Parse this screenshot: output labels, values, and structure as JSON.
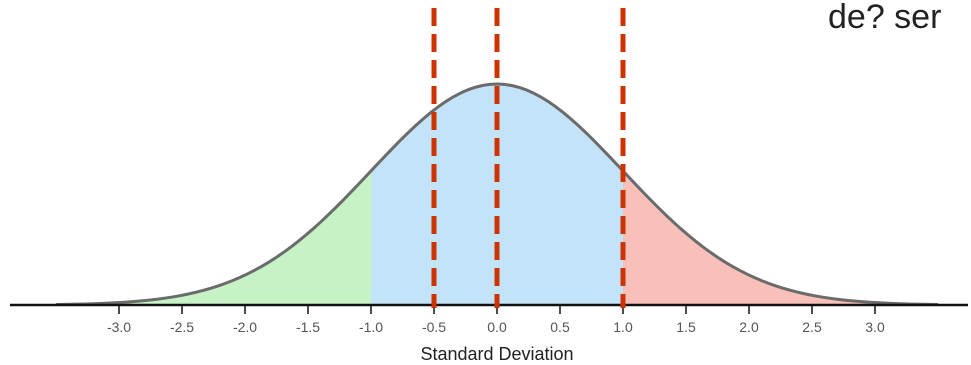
{
  "chart_data": {
    "type": "area",
    "title": "",
    "xlabel": "Standard Deviation",
    "ylabel": "",
    "xlim": [
      -3.5,
      3.5
    ],
    "x_ticks": [
      "-3.0",
      "-2.5",
      "-2.0",
      "-1.5",
      "-1.0",
      "-0.5",
      "0.0",
      "0.5",
      "1.0",
      "1.5",
      "2.0",
      "2.5",
      "3.0"
    ],
    "tick_values": [
      -3.0,
      -2.5,
      -2.0,
      -1.5,
      -1.0,
      -0.5,
      0.0,
      0.5,
      1.0,
      1.5,
      2.0,
      2.5,
      3.0
    ],
    "distribution": {
      "name": "normal",
      "mean": 0,
      "sd": 1
    },
    "regions": [
      {
        "from": -3.5,
        "to": -1.0,
        "color": "#c6f2c6"
      },
      {
        "from": -1.0,
        "to": 1.0,
        "color": "#c3e4f8"
      },
      {
        "from": 1.0,
        "to": 3.5,
        "color": "#f8c0b8"
      }
    ],
    "reference_lines": [
      {
        "x": -0.5,
        "color": "#cc3300",
        "style": "dashed"
      },
      {
        "x": 0.0,
        "color": "#cc3300",
        "style": "dashed"
      },
      {
        "x": 1.0,
        "color": "#cc3300",
        "style": "dashed"
      }
    ],
    "curve_color": "#6b6b6b",
    "axis_color": "#111111",
    "grid": false,
    "legend": "none"
  },
  "corner_text": "de? ser"
}
